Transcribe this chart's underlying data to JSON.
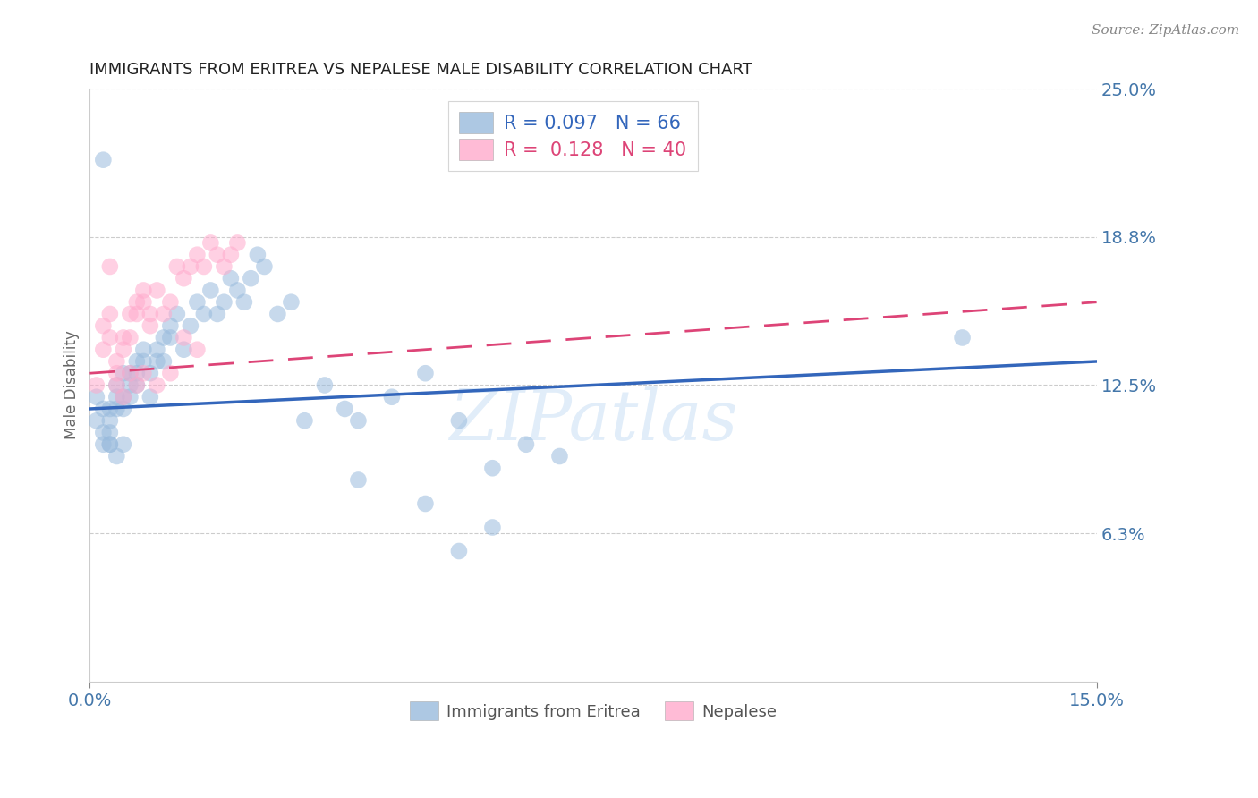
{
  "title": "IMMIGRANTS FROM ERITREA VS NEPALESE MALE DISABILITY CORRELATION CHART",
  "source": "Source: ZipAtlas.com",
  "ylabel": "Male Disability",
  "x_min": 0.0,
  "x_max": 0.15,
  "y_min": 0.0,
  "y_max": 0.25,
  "x_ticks": [
    0.0,
    0.15
  ],
  "x_tick_labels": [
    "0.0%",
    "15.0%"
  ],
  "y_ticks": [
    0.0625,
    0.125,
    0.1875,
    0.25
  ],
  "y_tick_labels": [
    "6.3%",
    "12.5%",
    "18.8%",
    "25.0%"
  ],
  "legend_labels": [
    "Immigrants from Eritrea",
    "Nepalese"
  ],
  "series1_label": "R = 0.097   N = 66",
  "series2_label": "R =  0.128   N = 40",
  "blue_color": "#99BBDD",
  "pink_color": "#FFAACC",
  "blue_line_color": "#3366BB",
  "pink_line_color": "#DD4477",
  "axis_label_color": "#4477AA",
  "tick_color": "#4477AA",
  "watermark": "ZIPatlas",
  "series1_x": [
    0.001,
    0.001,
    0.002,
    0.002,
    0.002,
    0.003,
    0.003,
    0.003,
    0.003,
    0.004,
    0.004,
    0.004,
    0.005,
    0.005,
    0.005,
    0.006,
    0.006,
    0.006,
    0.007,
    0.007,
    0.007,
    0.008,
    0.008,
    0.009,
    0.009,
    0.01,
    0.01,
    0.011,
    0.011,
    0.012,
    0.012,
    0.013,
    0.014,
    0.015,
    0.016,
    0.017,
    0.018,
    0.019,
    0.02,
    0.021,
    0.022,
    0.023,
    0.024,
    0.025,
    0.026,
    0.028,
    0.03,
    0.032,
    0.035,
    0.038,
    0.04,
    0.045,
    0.05,
    0.055,
    0.06,
    0.065,
    0.04,
    0.05,
    0.06,
    0.07,
    0.002,
    0.003,
    0.004,
    0.005,
    0.13,
    0.055
  ],
  "series1_y": [
    0.12,
    0.11,
    0.115,
    0.1,
    0.105,
    0.115,
    0.11,
    0.105,
    0.1,
    0.12,
    0.115,
    0.125,
    0.13,
    0.12,
    0.115,
    0.125,
    0.13,
    0.12,
    0.135,
    0.13,
    0.125,
    0.14,
    0.135,
    0.13,
    0.12,
    0.135,
    0.14,
    0.145,
    0.135,
    0.15,
    0.145,
    0.155,
    0.14,
    0.15,
    0.16,
    0.155,
    0.165,
    0.155,
    0.16,
    0.17,
    0.165,
    0.16,
    0.17,
    0.18,
    0.175,
    0.155,
    0.16,
    0.11,
    0.125,
    0.115,
    0.11,
    0.12,
    0.13,
    0.11,
    0.09,
    0.1,
    0.085,
    0.075,
    0.065,
    0.095,
    0.22,
    0.1,
    0.095,
    0.1,
    0.145,
    0.055
  ],
  "series2_x": [
    0.001,
    0.002,
    0.002,
    0.003,
    0.003,
    0.004,
    0.004,
    0.005,
    0.005,
    0.006,
    0.006,
    0.007,
    0.007,
    0.008,
    0.008,
    0.009,
    0.009,
    0.01,
    0.011,
    0.012,
    0.013,
    0.014,
    0.015,
    0.016,
    0.017,
    0.018,
    0.019,
    0.02,
    0.021,
    0.022,
    0.003,
    0.004,
    0.005,
    0.006,
    0.007,
    0.008,
    0.01,
    0.012,
    0.014,
    0.016
  ],
  "series2_y": [
    0.125,
    0.15,
    0.14,
    0.145,
    0.155,
    0.135,
    0.125,
    0.145,
    0.14,
    0.155,
    0.145,
    0.155,
    0.16,
    0.16,
    0.165,
    0.155,
    0.15,
    0.165,
    0.155,
    0.16,
    0.175,
    0.17,
    0.175,
    0.18,
    0.175,
    0.185,
    0.18,
    0.175,
    0.18,
    0.185,
    0.175,
    0.13,
    0.12,
    0.13,
    0.125,
    0.13,
    0.125,
    0.13,
    0.145,
    0.14
  ]
}
